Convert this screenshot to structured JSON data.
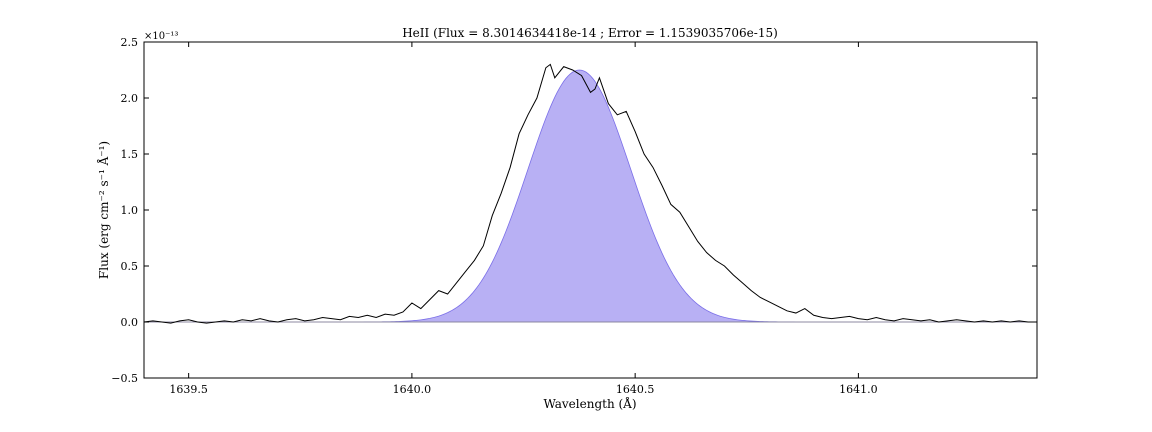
{
  "chart_data": {
    "type": "line",
    "title": "HeII (Flux = 8.3014634418e-14 ; Error = 1.1539035706e-15)",
    "xlabel": "Wavelength (Å)",
    "ylabel": "Flux (erg cm⁻² s⁻¹ Å⁻¹)",
    "offset_text": "×10⁻¹³",
    "xlim": [
      1639.4,
      1641.4
    ],
    "ylim": [
      -0.5,
      2.5
    ],
    "x_ticks": [
      1639.5,
      1640.0,
      1640.5,
      1641.0
    ],
    "x_tick_labels": [
      "1639.5",
      "1640.0",
      "1640.5",
      "1641.0"
    ],
    "y_ticks": [
      -0.5,
      0.0,
      0.5,
      1.0,
      1.5,
      2.0,
      2.5
    ],
    "y_tick_labels": [
      "−0.5",
      "0.0",
      "0.5",
      "1.0",
      "1.5",
      "2.0",
      "2.5"
    ],
    "grid": false,
    "colors": {
      "fit_fill": "#b8b0f4",
      "fit_edge": "#7a6ee8",
      "data_line": "#000000",
      "zero_line": "#888888"
    },
    "fit": {
      "amplitude": 2.25,
      "center": 1640.375,
      "sigma": 0.115
    },
    "series": [
      {
        "x": [
          1639.4,
          1639.42,
          1639.44,
          1639.46,
          1639.48,
          1639.5,
          1639.52,
          1639.54,
          1639.56,
          1639.58,
          1639.6,
          1639.62,
          1639.64,
          1639.66,
          1639.68,
          1639.7,
          1639.72,
          1639.74,
          1639.76,
          1639.78,
          1639.8,
          1639.82,
          1639.84,
          1639.86,
          1639.88,
          1639.9,
          1639.92,
          1639.94,
          1639.96,
          1639.98,
          1640.0,
          1640.02,
          1640.04,
          1640.06,
          1640.08,
          1640.1,
          1640.12,
          1640.14,
          1640.16,
          1640.18,
          1640.2,
          1640.22,
          1640.24,
          1640.26,
          1640.28,
          1640.3,
          1640.31,
          1640.32,
          1640.34,
          1640.36,
          1640.38,
          1640.4,
          1640.41,
          1640.42,
          1640.44,
          1640.46,
          1640.48,
          1640.5,
          1640.52,
          1640.54,
          1640.56,
          1640.58,
          1640.6,
          1640.62,
          1640.64,
          1640.66,
          1640.68,
          1640.7,
          1640.72,
          1640.74,
          1640.76,
          1640.78,
          1640.8,
          1640.82,
          1640.84,
          1640.86,
          1640.88,
          1640.9,
          1640.92,
          1640.94,
          1640.96,
          1640.98,
          1641.0,
          1641.02,
          1641.04,
          1641.06,
          1641.08,
          1641.1,
          1641.12,
          1641.14,
          1641.16,
          1641.18,
          1641.2,
          1641.22,
          1641.24,
          1641.26,
          1641.28,
          1641.3,
          1641.32,
          1641.34,
          1641.36,
          1641.38,
          1641.4
        ],
        "y": [
          0.0,
          0.01,
          0.0,
          -0.01,
          0.01,
          0.02,
          0.0,
          -0.01,
          0.0,
          0.01,
          0.0,
          0.02,
          0.01,
          0.03,
          0.01,
          0.0,
          0.02,
          0.03,
          0.01,
          0.02,
          0.04,
          0.03,
          0.02,
          0.05,
          0.04,
          0.06,
          0.04,
          0.07,
          0.06,
          0.09,
          0.17,
          0.12,
          0.2,
          0.28,
          0.25,
          0.35,
          0.45,
          0.55,
          0.68,
          0.95,
          1.15,
          1.38,
          1.68,
          1.85,
          2.0,
          2.27,
          2.3,
          2.18,
          2.28,
          2.25,
          2.2,
          2.05,
          2.08,
          2.18,
          1.95,
          1.85,
          1.88,
          1.7,
          1.5,
          1.38,
          1.22,
          1.05,
          0.98,
          0.85,
          0.72,
          0.62,
          0.55,
          0.5,
          0.42,
          0.35,
          0.28,
          0.22,
          0.18,
          0.14,
          0.1,
          0.08,
          0.12,
          0.06,
          0.04,
          0.03,
          0.04,
          0.05,
          0.03,
          0.02,
          0.04,
          0.02,
          0.01,
          0.03,
          0.02,
          0.01,
          0.02,
          0.0,
          0.01,
          0.02,
          0.01,
          0.0,
          0.01,
          0.0,
          0.01,
          0.0,
          0.01,
          0.0,
          0.0
        ]
      }
    ]
  }
}
